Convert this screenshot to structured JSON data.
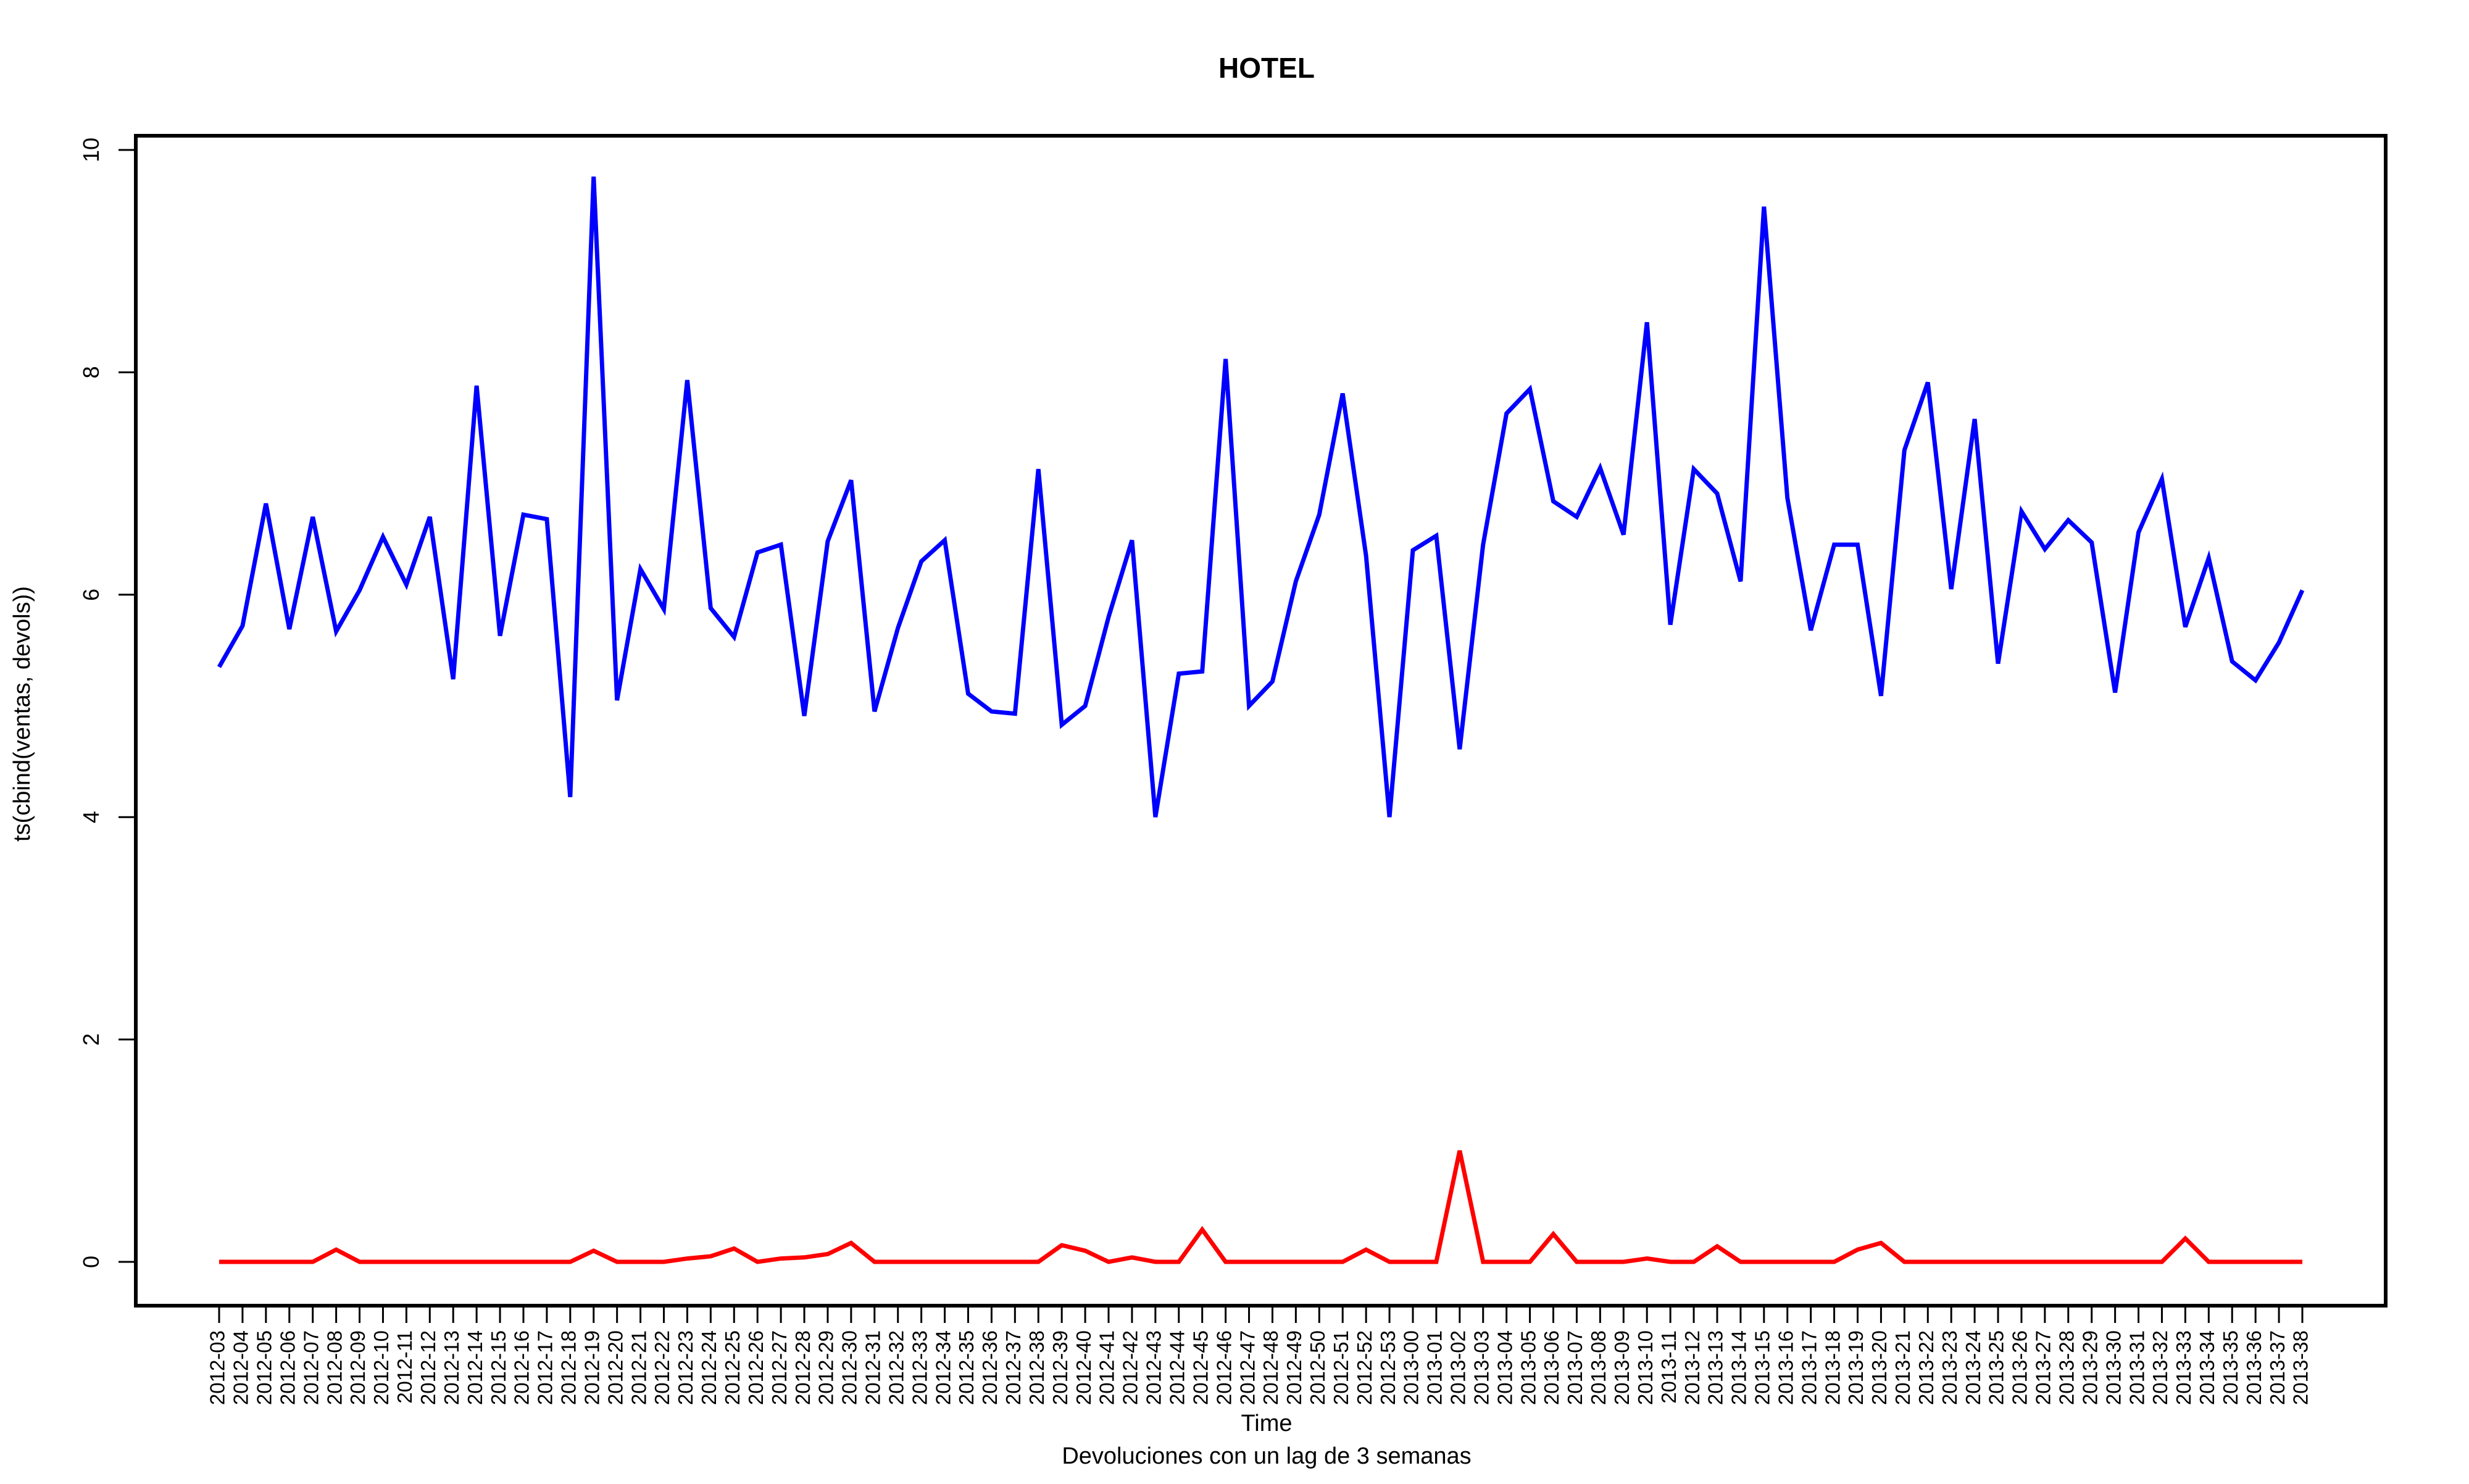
{
  "chart_data": {
    "type": "line",
    "title": "HOTEL",
    "xlabel": "Time",
    "ylabel": "ts(cbind(ventas, devols))",
    "subtitle": "Devoluciones con un lag de 3 semanas",
    "ylim": [
      0,
      10
    ],
    "yticks": [
      "0",
      "2",
      "4",
      "6",
      "8",
      "10"
    ],
    "grid": false,
    "legend": "none",
    "categories": [
      "2012-03",
      "2012-04",
      "2012-05",
      "2012-06",
      "2012-07",
      "2012-08",
      "2012-09",
      "2012-10",
      "2012-11",
      "2012-12",
      "2012-13",
      "2012-14",
      "2012-15",
      "2012-16",
      "2012-17",
      "2012-18",
      "2012-19",
      "2012-20",
      "2012-21",
      "2012-22",
      "2012-23",
      "2012-24",
      "2012-25",
      "2012-26",
      "2012-27",
      "2012-28",
      "2012-29",
      "2012-30",
      "2012-31",
      "2012-32",
      "2012-33",
      "2012-34",
      "2012-35",
      "2012-36",
      "2012-37",
      "2012-38",
      "2012-39",
      "2012-40",
      "2012-41",
      "2012-42",
      "2012-43",
      "2012-44",
      "2012-45",
      "2012-46",
      "2012-47",
      "2012-48",
      "2012-49",
      "2012-50",
      "2012-51",
      "2012-52",
      "2012-53",
      "2013-00",
      "2013-01",
      "2013-02",
      "2013-03",
      "2013-04",
      "2013-05",
      "2013-06",
      "2013-07",
      "2013-08",
      "2013-09",
      "2013-10",
      "2013-11",
      "2013-12",
      "2013-13",
      "2013-14",
      "2013-15",
      "2013-16",
      "2013-17",
      "2013-18",
      "2013-19",
      "2013-20",
      "2013-21",
      "2013-22",
      "2013-23",
      "2013-24",
      "2013-25",
      "2013-26",
      "2013-27",
      "2013-28",
      "2013-29",
      "2013-30",
      "2013-31",
      "2013-32",
      "2013-33",
      "2013-34",
      "2013-35",
      "2013-36",
      "2013-37",
      "2013-38"
    ],
    "series": [
      {
        "color": "#0000ff",
        "values": [
          5.35,
          5.72,
          6.82,
          5.69,
          6.7,
          5.67,
          6.04,
          6.52,
          6.09,
          6.7,
          5.24,
          7.88,
          5.63,
          6.72,
          6.68,
          4.18,
          9.76,
          5.05,
          6.23,
          5.87,
          7.93,
          5.88,
          5.62,
          6.38,
          6.45,
          4.91,
          6.48,
          7.03,
          4.95,
          5.7,
          6.3,
          6.49,
          5.11,
          4.95,
          4.93,
          7.13,
          4.83,
          5.0,
          5.8,
          6.49,
          4.0,
          5.29,
          5.31,
          8.12,
          5.0,
          5.22,
          6.12,
          6.72,
          7.81,
          6.35,
          4.0,
          6.4,
          6.53,
          4.61,
          6.45,
          7.63,
          7.85,
          6.84,
          6.7,
          7.14,
          6.54,
          8.45,
          5.73,
          7.13,
          6.91,
          6.12,
          9.49,
          6.87,
          5.68,
          6.45,
          6.45,
          5.09,
          7.3,
          7.91,
          6.05,
          7.58,
          5.38,
          6.75,
          6.41,
          6.67,
          6.47,
          5.12,
          6.56,
          7.04,
          5.71,
          6.33,
          5.4,
          5.23,
          5.57,
          6.04
        ]
      },
      {
        "color": "#ff0000",
        "values": [
          0,
          0,
          0,
          0,
          0,
          0.11,
          0,
          0,
          0,
          0,
          0,
          0,
          0,
          0,
          0,
          0,
          0.1,
          0,
          0,
          0,
          0.03,
          0.05,
          0.12,
          0,
          0.03,
          0.04,
          0.07,
          0.17,
          0,
          0,
          0,
          0,
          0,
          0,
          0,
          0,
          0.15,
          0.1,
          0,
          0.04,
          0,
          0,
          0.29,
          0,
          0,
          0,
          0,
          0,
          0,
          0.11,
          0,
          0,
          0,
          1.0,
          0,
          0,
          0,
          0.25,
          0,
          0,
          0,
          0.03,
          0,
          0,
          0.14,
          0,
          0,
          0,
          0,
          0,
          0.11,
          0.17,
          0,
          0,
          0,
          0,
          0,
          0,
          0,
          0,
          0,
          0,
          0,
          0,
          0.21,
          0,
          0,
          0,
          0,
          0
        ]
      }
    ]
  }
}
